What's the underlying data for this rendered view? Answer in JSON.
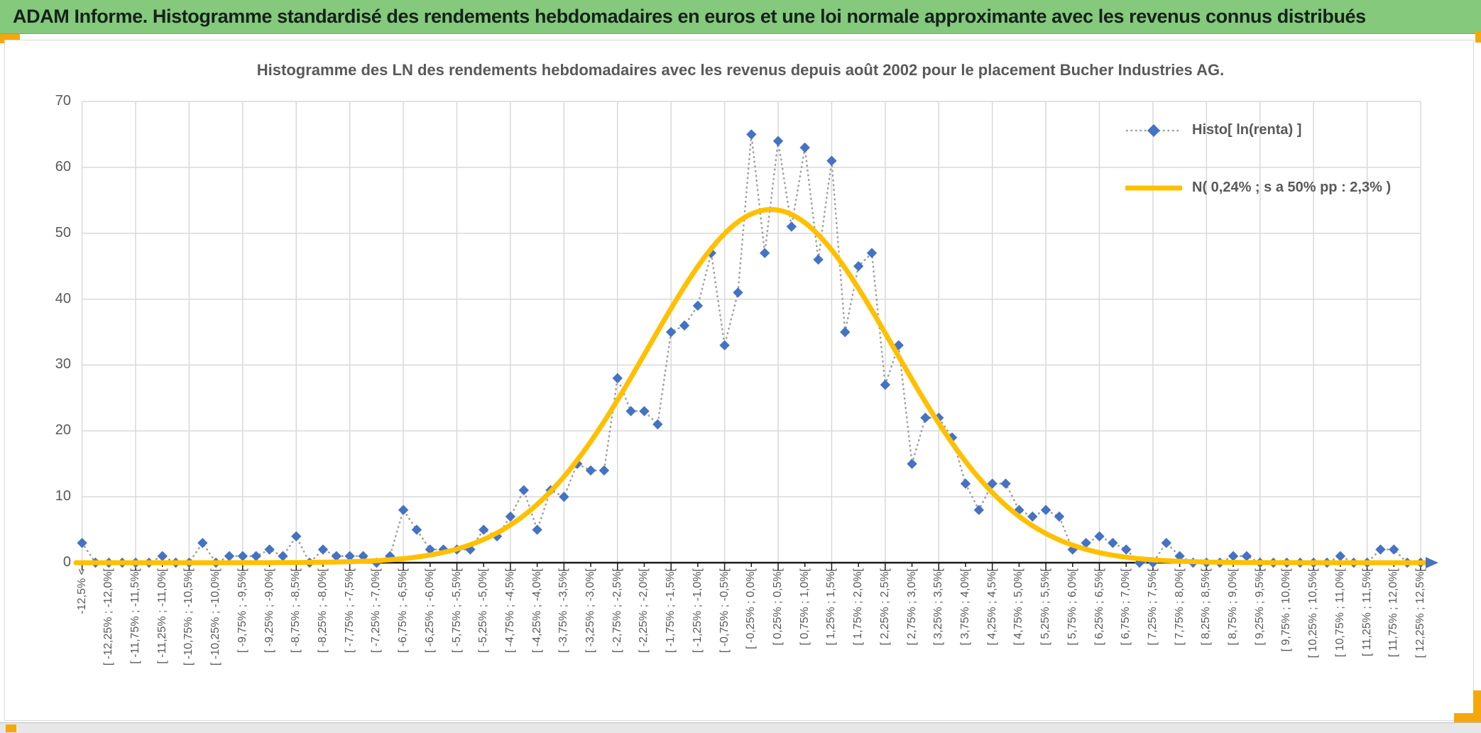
{
  "window": {
    "header_title": "ADAM Informe. Histogramme standardisé des rendements hebdomadaires en euros et une loi normale approximante avec les revenus connus distribués"
  },
  "chart": {
    "title": "Histogramme des LN des rendements hebdomadaires avec les revenus depuis août 2002 pour le placement Bucher Industries AG.",
    "legend": [
      {
        "label": "Histo[ ln(renta) ]",
        "marker": "blue-diamond-dotted-line"
      },
      {
        "label": "N( 0,24% ; s a 50% pp : 2,3% )",
        "marker": "gold-line"
      }
    ]
  },
  "chart_data": {
    "type": "line",
    "title": "Histogramme des LN des rendements hebdomadaires avec les revenus depuis août 2002 pour le placement Bucher Industries AG.",
    "xlabel": "",
    "ylabel": "",
    "ylim": [
      0,
      70
    ],
    "y_ticks": [
      0,
      10,
      20,
      30,
      40,
      50,
      60,
      70
    ],
    "grid": true,
    "legend_position": "upper-right",
    "bin_width_pct": 0.25,
    "x_label_every": 2,
    "x_labels": [
      "-12,5% <",
      "[ -12,25% ; -12,0%[",
      "[ -11,75% ; -11,5%[",
      "[ -11,25% ; -11,0%[",
      "[ -10,75% ; -10,5%[",
      "[ -10,25% ; -10,0%[",
      "[ -9,75% ; -9,5%[",
      "[ -9,25% ; -9,0%[",
      "[ -8,75% ; -8,5%[",
      "[ -8,25% ; -8,0%[",
      "[ -7,75% ; -7,5%[",
      "[ -7,25% ; -7,0%[",
      "[ -6,75% ; -6,5%[",
      "[ -6,25% ; -6,0%[",
      "[ -5,75% ; -5,5%[",
      "[ -5,25% ; -5,0%[",
      "[ -4,75% ; -4,5%[",
      "[ -4,25% ; -4,0%[",
      "[ -3,75% ; -3,5%[",
      "[ -3,25% ; -3,0%[",
      "[ -2,75% ; -2,5%[",
      "[ -2,25% ; -2,0%[",
      "[ -1,75% ; -1,5%[",
      "[ -1,25% ; -1,0%[",
      "[ -0,75% ; -0,5%[",
      "[ -0,25% ; 0,0%[",
      "[ 0,25% ; 0,5%[",
      "[ 0,75% ; 1,0%[",
      "[ 1,25% ; 1,5%[",
      "[ 1,75% ; 2,0%[",
      "[ 2,25% ; 2,5%[",
      "[ 2,75% ; 3,0%[",
      "[ 3,25% ; 3,5%[",
      "[ 3,75% ; 4,0%[",
      "[ 4,25% ; 4,5%[",
      "[ 4,75% ; 5,0%[",
      "[ 5,25% ; 5,5%[",
      "[ 5,75% ; 6,0%[",
      "[ 6,25% ; 6,5%[",
      "[ 6,75% ; 7,0%[",
      "[ 7,25% ; 7,5%[",
      "[ 7,75% ; 8,0%[",
      "[ 8,25% ; 8,5%[",
      "[ 8,75% ; 9,0%[",
      "[ 9,25% ; 9,5%[",
      "[ 9,75% ; 10,0%[",
      "[ 10,25% ; 10,5%[",
      "[ 10,75% ; 11,0%[",
      "[ 11,25% ; 11,5%[",
      "[ 11,75% ; 12,0%[",
      "[ 12,25% ; 12,5%["
    ],
    "series": [
      {
        "name": "Histo[ ln(renta) ]",
        "style": "dotted-line-with-diamond-markers",
        "values": [
          3,
          0,
          0,
          0,
          0,
          0,
          1,
          0,
          0,
          3,
          0,
          1,
          1,
          1,
          2,
          1,
          4,
          0,
          2,
          1,
          1,
          1,
          0,
          1,
          8,
          5,
          2,
          2,
          2,
          2,
          5,
          4,
          7,
          11,
          5,
          11,
          10,
          15,
          14,
          14,
          28,
          23,
          23,
          21,
          35,
          36,
          39,
          47,
          33,
          41,
          65,
          47,
          64,
          51,
          63,
          46,
          61,
          35,
          45,
          47,
          27,
          33,
          15,
          22,
          22,
          19,
          12,
          8,
          12,
          12,
          8,
          7,
          8,
          7,
          2,
          3,
          4,
          3,
          2,
          0,
          0,
          3,
          1,
          0,
          0,
          0,
          1,
          1,
          0,
          0,
          0,
          0,
          0,
          0,
          1,
          0,
          0,
          2,
          2,
          0,
          0
        ]
      },
      {
        "name": "N( 0,24% ; s a 50% pp : 2,3% )",
        "style": "smooth-curve",
        "mean_pct": 0.24,
        "sigma_pct": 2.3,
        "peak_height": 53.6
      }
    ]
  },
  "colors": {
    "header_green": "#84c97c",
    "accent_orange": "#f4a80b",
    "diamond_blue": "#4472c4",
    "curve_gold": "#ffc000",
    "dotted_gray": "#9e9e9e",
    "gridline": "#d9d9d9",
    "axis_black": "#1a1a1a",
    "text_gray": "#595959"
  }
}
